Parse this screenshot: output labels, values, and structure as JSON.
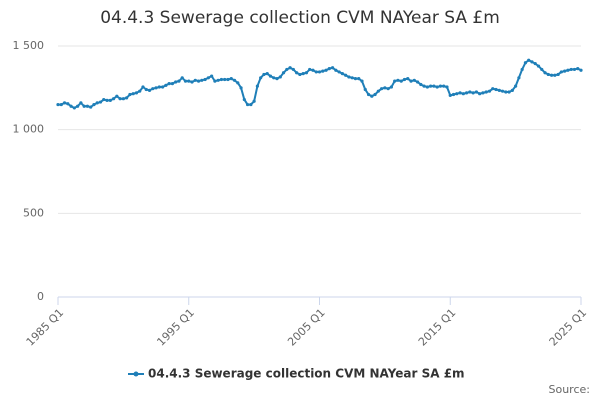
{
  "chart_data": {
    "type": "line",
    "title": "04.4.3 Sewerage collection CVM NAYear SA £m",
    "categories": [
      "1985 Q1",
      null,
      null,
      null,
      null,
      null,
      null,
      null,
      null,
      null,
      null,
      null,
      null,
      null,
      null,
      null,
      null,
      null,
      null,
      null,
      null,
      null,
      null,
      null,
      null,
      null,
      null,
      null,
      null,
      null,
      null,
      null,
      null,
      null,
      null,
      null,
      null,
      null,
      null,
      null,
      "1995 Q1",
      null,
      null,
      null,
      null,
      null,
      null,
      null,
      null,
      null,
      null,
      null,
      null,
      null,
      null,
      null,
      null,
      null,
      null,
      null,
      null,
      null,
      null,
      null,
      null,
      null,
      null,
      null,
      null,
      null,
      null,
      null,
      null,
      null,
      null,
      null,
      null,
      null,
      null,
      null,
      "2005 Q1",
      null,
      null,
      null,
      null,
      null,
      null,
      null,
      null,
      null,
      null,
      null,
      null,
      null,
      null,
      null,
      null,
      null,
      null,
      null,
      null,
      null,
      null,
      null,
      null,
      null,
      null,
      null,
      null,
      null,
      null,
      null,
      null,
      null,
      null,
      null,
      null,
      null,
      null,
      null,
      "2015 Q1",
      null,
      null,
      null,
      null,
      null,
      null,
      null,
      null,
      null,
      null,
      null,
      null,
      null,
      null,
      null,
      null,
      null,
      null,
      null,
      null,
      null,
      null,
      null,
      null,
      null,
      null,
      null,
      null,
      null,
      null,
      null,
      null,
      null,
      null,
      null,
      null,
      null,
      null,
      null,
      "2025 Q1"
    ],
    "series": [
      {
        "name": "04.4.3 Sewerage collection CVM NAYear SA £m",
        "color": "#1f7fb8",
        "values": [
          1150,
          1150,
          1160,
          1155,
          1140,
          1130,
          1140,
          1160,
          1140,
          1140,
          1135,
          1150,
          1160,
          1165,
          1180,
          1175,
          1175,
          1185,
          1200,
          1185,
          1185,
          1190,
          1210,
          1215,
          1220,
          1230,
          1255,
          1240,
          1235,
          1245,
          1250,
          1255,
          1255,
          1265,
          1275,
          1275,
          1285,
          1290,
          1310,
          1290,
          1290,
          1285,
          1295,
          1290,
          1295,
          1300,
          1310,
          1320,
          1290,
          1295,
          1300,
          1300,
          1300,
          1305,
          1295,
          1280,
          1250,
          1180,
          1150,
          1150,
          1170,
          1260,
          1310,
          1330,
          1335,
          1320,
          1310,
          1305,
          1315,
          1340,
          1360,
          1370,
          1360,
          1340,
          1330,
          1335,
          1340,
          1360,
          1355,
          1345,
          1345,
          1350,
          1355,
          1365,
          1370,
          1355,
          1345,
          1335,
          1325,
          1315,
          1310,
          1305,
          1305,
          1290,
          1240,
          1210,
          1200,
          1210,
          1230,
          1245,
          1250,
          1245,
          1255,
          1290,
          1295,
          1290,
          1300,
          1305,
          1290,
          1295,
          1285,
          1270,
          1260,
          1255,
          1260,
          1260,
          1255,
          1260,
          1260,
          1255,
          1205,
          1210,
          1215,
          1220,
          1215,
          1220,
          1225,
          1220,
          1225,
          1215,
          1220,
          1225,
          1230,
          1245,
          1240,
          1235,
          1230,
          1225,
          1225,
          1235,
          1260,
          1310,
          1360,
          1400,
          1415,
          1405,
          1395,
          1380,
          1360,
          1340,
          1330,
          1325,
          1325,
          1330,
          1345,
          1350,
          1355,
          1360,
          1360,
          1365,
          1355
        ]
      }
    ],
    "ylim": [
      0,
      1500
    ],
    "yticks": [
      0,
      500,
      {
        "value": 1000,
        "label": "1 000"
      },
      {
        "value": 1500,
        "label": "1 500"
      }
    ],
    "grid": true,
    "source": "Source:"
  }
}
